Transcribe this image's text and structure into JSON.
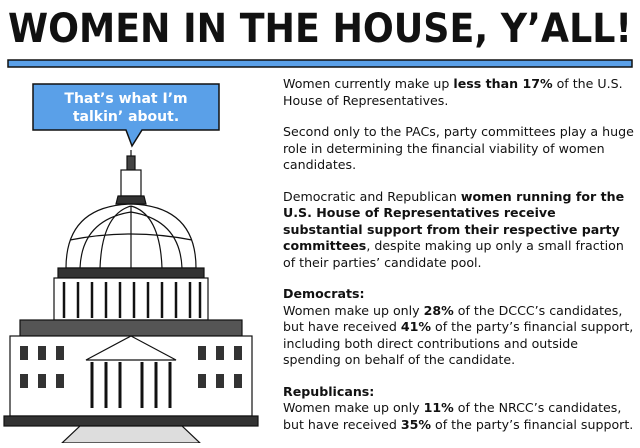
{
  "header": {
    "title": "WOMEN IN THE HOUSE, Y’ALL!"
  },
  "bubble": {
    "lines": [
      "That’s what I’m",
      "talkin’ about."
    ]
  },
  "sections": [
    {
      "runs": [
        {
          "text": "Women currently make up "
        },
        {
          "text": "less than 17%",
          "bold": true
        },
        {
          "text": " of the U.S. House of Representatives."
        }
      ]
    },
    {
      "runs": [
        {
          "text": "Second only to the PACs, party committees play a huge role in determining the financial viability of women candidates."
        }
      ]
    },
    {
      "runs": [
        {
          "text": "Democratic and Republican "
        },
        {
          "text": "women running for the U.S. House of Representatives receive substantial support from their respective party committees",
          "bold": true
        },
        {
          "text": ", despite making up only a small fraction of their parties’ candidate pool."
        }
      ]
    },
    {
      "heading": "Democrats:",
      "runs": [
        {
          "text": "Women make up only "
        },
        {
          "text": "28%",
          "bold": true
        },
        {
          "text": " of the DCCC’s candidates, but have received "
        },
        {
          "text": "41%",
          "bold": true
        },
        {
          "text": " of the party’s financial support, including both direct contributions and outside spending on behalf of the candidate."
        }
      ]
    },
    {
      "heading": "Republicans:",
      "runs": [
        {
          "text": "Women make up only "
        },
        {
          "text": "11%",
          "bold": true
        },
        {
          "text": " of the NRCC’s candidates, but have received "
        },
        {
          "text": "35%",
          "bold": true
        },
        {
          "text": " of the party’s financial support."
        }
      ]
    }
  ]
}
